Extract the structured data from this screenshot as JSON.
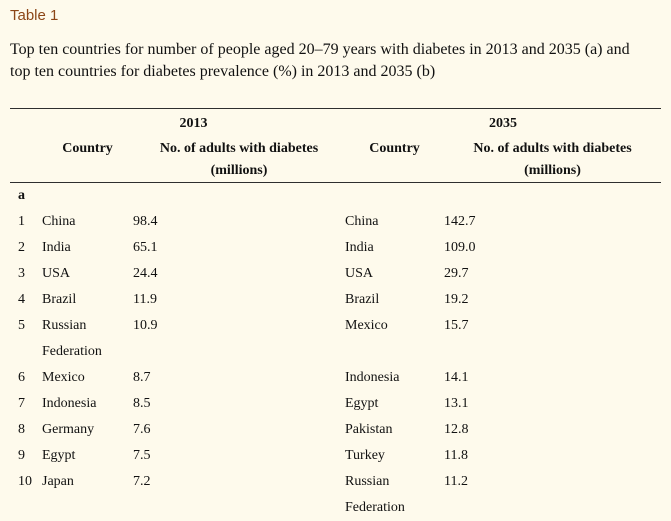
{
  "page": {
    "background_color": "#FEFAEC",
    "accent_color": "#8C4617",
    "rule_color": "#2e2e2e"
  },
  "header": {
    "table_label": "Table 1",
    "caption": "Top ten countries for number of people aged 20–79 years with diabetes in 2013 and 2035 (a) and top ten countries for diabetes prevalence (%) in 2013 and 2035 (b)"
  },
  "table": {
    "section_label": "a",
    "groups": [
      {
        "year": "2013",
        "country_header": "Country",
        "value_header_line1": "No. of adults with diabetes",
        "value_header_line2": "(millions)"
      },
      {
        "year": "2035",
        "country_header": "Country",
        "value_header_line1": "No. of adults with diabetes",
        "value_header_line2": "(millions)"
      }
    ],
    "rows": [
      {
        "rank": "1",
        "country_2013": "China",
        "value_2013": "98.4",
        "country_2035": "China",
        "value_2035": "142.7"
      },
      {
        "rank": "2",
        "country_2013": "India",
        "value_2013": "65.1",
        "country_2035": "India",
        "value_2035": "109.0"
      },
      {
        "rank": "3",
        "country_2013": "USA",
        "value_2013": "24.4",
        "country_2035": "USA",
        "value_2035": "29.7"
      },
      {
        "rank": "4",
        "country_2013": "Brazil",
        "value_2013": "11.9",
        "country_2035": "Brazil",
        "value_2035": "19.2"
      },
      {
        "rank": "5",
        "country_2013": "Russian Federation",
        "value_2013": "10.9",
        "country_2035": "Mexico",
        "value_2035": "15.7"
      },
      {
        "rank": "6",
        "country_2013": "Mexico",
        "value_2013": "8.7",
        "country_2035": "Indonesia",
        "value_2035": "14.1"
      },
      {
        "rank": "7",
        "country_2013": "Indonesia",
        "value_2013": "8.5",
        "country_2035": "Egypt",
        "value_2035": "13.1"
      },
      {
        "rank": "8",
        "country_2013": "Germany",
        "value_2013": "7.6",
        "country_2035": "Pakistan",
        "value_2035": "12.8"
      },
      {
        "rank": "9",
        "country_2013": "Egypt",
        "value_2013": "7.5",
        "country_2035": "Turkey",
        "value_2035": "11.8"
      },
      {
        "rank": "10",
        "country_2013": "Japan",
        "value_2013": "7.2",
        "country_2035": "Russian Federation",
        "value_2035": "11.2"
      }
    ]
  }
}
